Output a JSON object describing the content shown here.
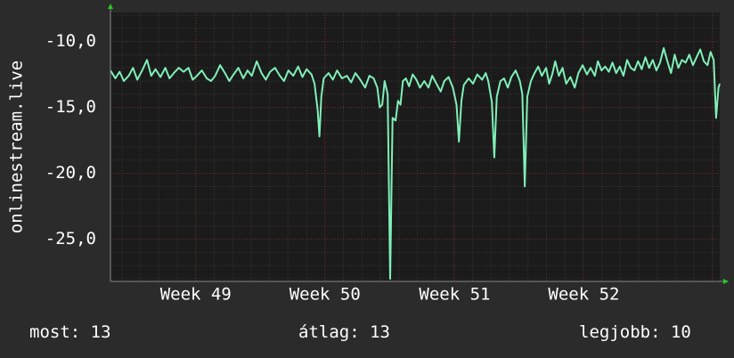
{
  "chart_data": {
    "type": "line",
    "ylabel": "onlinestream.live",
    "ylim": [
      -28.2,
      -7.8
    ],
    "yticks": [
      -10.0,
      -15.0,
      -20.0,
      -25.0
    ],
    "ytick_labels": [
      "-10,0",
      "-15,0",
      "-20,0",
      "-25,0"
    ],
    "xlim": [
      0,
      100
    ],
    "xticks": [
      {
        "label": "Week 49",
        "x": 14
      },
      {
        "label": "Week 50",
        "x": 35.2
      },
      {
        "label": "Week 51",
        "x": 56.5
      },
      {
        "label": "Week 52",
        "x": 77.7
      }
    ],
    "grid": true,
    "series": [
      {
        "color": "#7ff0b8",
        "points": [
          [
            0,
            -12.2
          ],
          [
            0.8,
            -12.8
          ],
          [
            1.5,
            -12.3
          ],
          [
            2.2,
            -13.0
          ],
          [
            3.0,
            -12.6
          ],
          [
            3.7,
            -12.0
          ],
          [
            4.4,
            -12.9
          ],
          [
            5.2,
            -12.2
          ],
          [
            6.0,
            -11.4
          ],
          [
            6.7,
            -12.6
          ],
          [
            7.4,
            -12.1
          ],
          [
            8.2,
            -12.7
          ],
          [
            9.0,
            -12.0
          ],
          [
            9.7,
            -12.8
          ],
          [
            10.4,
            -12.4
          ],
          [
            11.2,
            -12.0
          ],
          [
            12.0,
            -12.3
          ],
          [
            12.8,
            -12.0
          ],
          [
            13.5,
            -12.9
          ],
          [
            14.2,
            -12.6
          ],
          [
            15.0,
            -12.2
          ],
          [
            15.8,
            -12.8
          ],
          [
            16.5,
            -13.0
          ],
          [
            17.2,
            -12.6
          ],
          [
            18.0,
            -11.8
          ],
          [
            18.8,
            -12.4
          ],
          [
            19.5,
            -13.0
          ],
          [
            20.2,
            -12.5
          ],
          [
            21.0,
            -12.0
          ],
          [
            21.8,
            -12.8
          ],
          [
            22.5,
            -12.2
          ],
          [
            23.2,
            -12.6
          ],
          [
            24.0,
            -11.5
          ],
          [
            24.8,
            -12.4
          ],
          [
            25.5,
            -12.9
          ],
          [
            26.2,
            -12.3
          ],
          [
            27.0,
            -12.0
          ],
          [
            27.8,
            -12.6
          ],
          [
            28.5,
            -13.0
          ],
          [
            29.2,
            -12.2
          ],
          [
            30.0,
            -12.6
          ],
          [
            30.8,
            -11.9
          ],
          [
            31.5,
            -12.7
          ],
          [
            32.2,
            -12.1
          ],
          [
            33.0,
            -12.5
          ],
          [
            33.5,
            -13.2
          ],
          [
            34.0,
            -15.2
          ],
          [
            34.3,
            -17.2
          ],
          [
            34.6,
            -14.2
          ],
          [
            35.0,
            -12.8
          ],
          [
            35.8,
            -12.4
          ],
          [
            36.5,
            -12.9
          ],
          [
            37.2,
            -12.2
          ],
          [
            38.0,
            -12.8
          ],
          [
            38.8,
            -12.6
          ],
          [
            39.5,
            -13.1
          ],
          [
            40.2,
            -12.4
          ],
          [
            41.0,
            -12.9
          ],
          [
            41.8,
            -13.5
          ],
          [
            42.5,
            -12.6
          ],
          [
            43.2,
            -12.8
          ],
          [
            43.8,
            -13.5
          ],
          [
            44.2,
            -15.0
          ],
          [
            44.6,
            -14.8
          ],
          [
            45.0,
            -13.0
          ],
          [
            45.5,
            -14.0
          ],
          [
            45.9,
            -28.0
          ],
          [
            46.3,
            -15.8
          ],
          [
            46.8,
            -16.0
          ],
          [
            47.2,
            -14.5
          ],
          [
            47.6,
            -14.8
          ],
          [
            48.0,
            -13.0
          ],
          [
            48.5,
            -12.8
          ],
          [
            49.0,
            -13.4
          ],
          [
            49.6,
            -12.5
          ],
          [
            50.2,
            -12.9
          ],
          [
            50.8,
            -13.5
          ],
          [
            51.5,
            -13.0
          ],
          [
            52.2,
            -13.5
          ],
          [
            52.8,
            -12.6
          ],
          [
            53.5,
            -13.2
          ],
          [
            54.2,
            -13.8
          ],
          [
            54.8,
            -13.0
          ],
          [
            55.5,
            -12.7
          ],
          [
            56.2,
            -13.5
          ],
          [
            56.8,
            -14.8
          ],
          [
            57.2,
            -17.6
          ],
          [
            57.6,
            -14.5
          ],
          [
            58.0,
            -13.3
          ],
          [
            58.8,
            -12.8
          ],
          [
            59.5,
            -13.2
          ],
          [
            60.2,
            -12.5
          ],
          [
            61.0,
            -12.9
          ],
          [
            61.6,
            -12.4
          ],
          [
            62.0,
            -13.0
          ],
          [
            62.6,
            -14.6
          ],
          [
            63.0,
            -18.8
          ],
          [
            63.4,
            -14.2
          ],
          [
            64.0,
            -13.0
          ],
          [
            64.6,
            -12.8
          ],
          [
            65.2,
            -13.5
          ],
          [
            65.8,
            -12.7
          ],
          [
            66.5,
            -12.2
          ],
          [
            67.2,
            -13.0
          ],
          [
            67.6,
            -14.0
          ],
          [
            68.0,
            -21.0
          ],
          [
            68.4,
            -14.2
          ],
          [
            69.0,
            -13.0
          ],
          [
            69.6,
            -12.4
          ],
          [
            70.2,
            -11.9
          ],
          [
            70.8,
            -12.6
          ],
          [
            71.5,
            -12.0
          ],
          [
            72.0,
            -13.2
          ],
          [
            72.5,
            -12.5
          ],
          [
            73.0,
            -11.5
          ],
          [
            73.6,
            -12.6
          ],
          [
            74.2,
            -12.0
          ],
          [
            74.8,
            -13.2
          ],
          [
            75.5,
            -12.7
          ],
          [
            76.2,
            -13.5
          ],
          [
            76.8,
            -12.4
          ],
          [
            77.5,
            -11.8
          ],
          [
            78.2,
            -12.5
          ],
          [
            78.8,
            -12.0
          ],
          [
            79.5,
            -12.6
          ],
          [
            80.0,
            -11.5
          ],
          [
            80.6,
            -12.2
          ],
          [
            81.2,
            -11.9
          ],
          [
            81.8,
            -12.3
          ],
          [
            82.4,
            -11.6
          ],
          [
            83.0,
            -12.4
          ],
          [
            83.6,
            -11.9
          ],
          [
            84.2,
            -12.6
          ],
          [
            84.8,
            -11.4
          ],
          [
            85.4,
            -12.0
          ],
          [
            86.0,
            -12.2
          ],
          [
            86.6,
            -11.5
          ],
          [
            87.2,
            -12.1
          ],
          [
            87.8,
            -11.2
          ],
          [
            88.4,
            -12.0
          ],
          [
            89.0,
            -11.4
          ],
          [
            89.6,
            -12.2
          ],
          [
            90.2,
            -11.6
          ],
          [
            90.8,
            -10.5
          ],
          [
            91.4,
            -11.5
          ],
          [
            92.0,
            -12.4
          ],
          [
            92.6,
            -11.0
          ],
          [
            93.2,
            -12.0
          ],
          [
            93.8,
            -11.4
          ],
          [
            94.4,
            -11.6
          ],
          [
            95.0,
            -11.0
          ],
          [
            95.6,
            -11.8
          ],
          [
            96.2,
            -11.2
          ],
          [
            96.8,
            -10.6
          ],
          [
            97.4,
            -11.5
          ],
          [
            98.0,
            -11.8
          ],
          [
            98.5,
            -10.8
          ],
          [
            99.0,
            -11.4
          ],
          [
            99.4,
            -15.8
          ],
          [
            99.8,
            -13.5
          ],
          [
            100,
            -13.2
          ]
        ]
      }
    ]
  },
  "footer": {
    "now": "most: 13",
    "average": "átlag: 13",
    "best": "legjobb: 10"
  }
}
